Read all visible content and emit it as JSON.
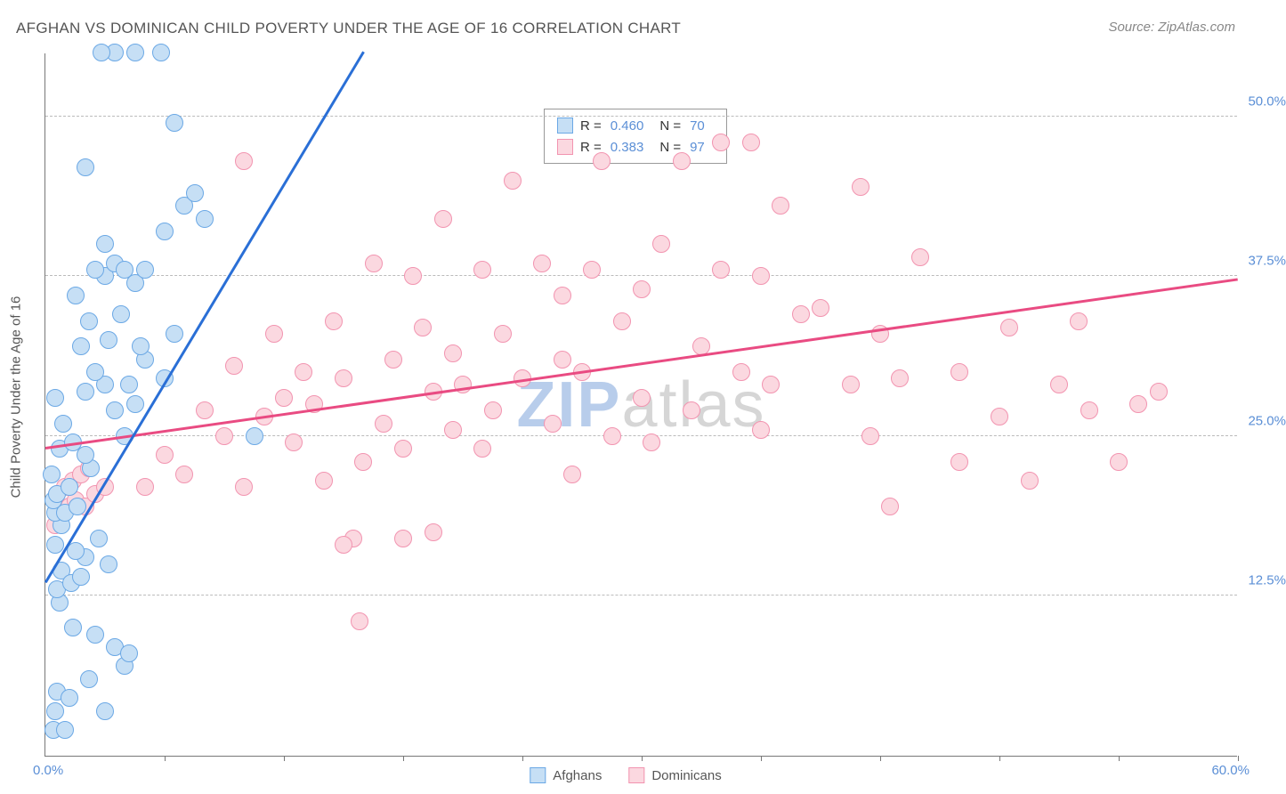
{
  "title": "AFGHAN VS DOMINICAN CHILD POVERTY UNDER THE AGE OF 16 CORRELATION CHART",
  "source": "Source: ZipAtlas.com",
  "watermark_bold": "ZIP",
  "watermark_light": "atlas",
  "y_axis_label": "Child Poverty Under the Age of 16",
  "chart": {
    "type": "scatter",
    "xlim": [
      0,
      60
    ],
    "ylim": [
      0,
      55
    ],
    "x_min_label": "0.0%",
    "x_max_label": "60.0%",
    "y_ticks": [
      {
        "v": 12.5,
        "label": "12.5%"
      },
      {
        "v": 25.0,
        "label": "25.0%"
      },
      {
        "v": 37.5,
        "label": "37.5%"
      },
      {
        "v": 50.0,
        "label": "50.0%"
      }
    ],
    "x_ticks_at": [
      6,
      12,
      18,
      24,
      30,
      36,
      42,
      48,
      54,
      60
    ],
    "marker_size": 20,
    "background_color": "#ffffff",
    "grid_color": "#bbbbbb"
  },
  "series": {
    "afghans": {
      "label": "Afghans",
      "color_fill": "#c6dff5",
      "color_stroke": "#6ba8e5",
      "line_color": "#2a6fd6",
      "R": "0.460",
      "N": "70",
      "trend": {
        "x1": 0,
        "y1": 13.5,
        "x2": 16,
        "y2": 55
      },
      "points": [
        [
          0.4,
          2.0
        ],
        [
          0.5,
          3.5
        ],
        [
          1.0,
          2.0
        ],
        [
          0.6,
          5.0
        ],
        [
          3.0,
          3.5
        ],
        [
          1.2,
          4.5
        ],
        [
          2.2,
          6.0
        ],
        [
          4.0,
          7.0
        ],
        [
          3.5,
          8.5
        ],
        [
          4.2,
          8.0
        ],
        [
          2.5,
          9.5
        ],
        [
          1.4,
          10.0
        ],
        [
          0.7,
          12.0
        ],
        [
          0.6,
          13.0
        ],
        [
          0.8,
          14.5
        ],
        [
          1.3,
          13.5
        ],
        [
          1.8,
          14.0
        ],
        [
          2.0,
          15.5
        ],
        [
          3.2,
          15.0
        ],
        [
          0.5,
          16.5
        ],
        [
          1.5,
          16.0
        ],
        [
          2.7,
          17.0
        ],
        [
          0.8,
          18.0
        ],
        [
          0.5,
          19.0
        ],
        [
          1.0,
          19.0
        ],
        [
          1.6,
          19.5
        ],
        [
          0.4,
          20.0
        ],
        [
          0.6,
          20.5
        ],
        [
          1.2,
          21.0
        ],
        [
          0.3,
          22.0
        ],
        [
          2.3,
          22.5
        ],
        [
          2.0,
          23.5
        ],
        [
          0.7,
          24.0
        ],
        [
          1.4,
          24.5
        ],
        [
          4.0,
          25.0
        ],
        [
          10.5,
          25.0
        ],
        [
          0.9,
          26.0
        ],
        [
          3.5,
          27.0
        ],
        [
          4.5,
          27.5
        ],
        [
          0.5,
          28.0
        ],
        [
          2.0,
          28.5
        ],
        [
          3.0,
          29.0
        ],
        [
          4.2,
          29.0
        ],
        [
          6.0,
          29.5
        ],
        [
          2.5,
          30.0
        ],
        [
          5.0,
          31.0
        ],
        [
          1.8,
          32.0
        ],
        [
          3.2,
          32.5
        ],
        [
          4.8,
          32.0
        ],
        [
          6.5,
          33.0
        ],
        [
          2.2,
          34.0
        ],
        [
          3.8,
          34.5
        ],
        [
          1.5,
          36.0
        ],
        [
          4.5,
          37.0
        ],
        [
          3.0,
          37.5
        ],
        [
          5.0,
          38.0
        ],
        [
          2.5,
          38.0
        ],
        [
          3.5,
          38.5
        ],
        [
          4.0,
          38.0
        ],
        [
          6.0,
          41.0
        ],
        [
          7.0,
          43.0
        ],
        [
          7.5,
          44.0
        ],
        [
          3.5,
          55.0
        ],
        [
          4.5,
          55.0
        ],
        [
          2.8,
          55.0
        ],
        [
          5.8,
          55.0
        ],
        [
          6.5,
          49.5
        ],
        [
          8.0,
          42.0
        ],
        [
          2.0,
          46.0
        ],
        [
          3.0,
          40.0
        ]
      ]
    },
    "dominicans": {
      "label": "Dominicans",
      "color_fill": "#fbd8e0",
      "color_stroke": "#f294b0",
      "line_color": "#e94b82",
      "R": "0.383",
      "N": "97",
      "trend": {
        "x1": 0,
        "y1": 24.0,
        "x2": 60,
        "y2": 37.2
      },
      "points": [
        [
          0.5,
          18.0
        ],
        [
          0.8,
          19.0
        ],
        [
          1.2,
          19.5
        ],
        [
          1.5,
          20.0
        ],
        [
          0.6,
          20.5
        ],
        [
          1.0,
          21.0
        ],
        [
          1.4,
          21.5
        ],
        [
          2.0,
          19.5
        ],
        [
          1.8,
          22.0
        ],
        [
          2.5,
          20.5
        ],
        [
          2.2,
          22.5
        ],
        [
          3.0,
          21.0
        ],
        [
          5.0,
          21.0
        ],
        [
          6.0,
          23.5
        ],
        [
          7.0,
          22.0
        ],
        [
          8.0,
          27.0
        ],
        [
          9.0,
          25.0
        ],
        [
          9.5,
          30.5
        ],
        [
          10.0,
          21.0
        ],
        [
          11.0,
          26.5
        ],
        [
          11.5,
          33.0
        ],
        [
          12.0,
          28.0
        ],
        [
          12.5,
          24.5
        ],
        [
          13.0,
          30.0
        ],
        [
          13.5,
          27.5
        ],
        [
          14.0,
          21.5
        ],
        [
          14.5,
          34.0
        ],
        [
          15.0,
          29.5
        ],
        [
          15.5,
          17.0
        ],
        [
          15.0,
          16.5
        ],
        [
          15.8,
          10.5
        ],
        [
          16.0,
          23.0
        ],
        [
          16.5,
          38.5
        ],
        [
          17.0,
          26.0
        ],
        [
          17.5,
          31.0
        ],
        [
          18.0,
          24.0
        ],
        [
          18.0,
          17.0
        ],
        [
          18.5,
          37.5
        ],
        [
          19.0,
          33.5
        ],
        [
          19.5,
          17.5
        ],
        [
          19.5,
          28.5
        ],
        [
          20.0,
          42.0
        ],
        [
          20.5,
          25.5
        ],
        [
          20.5,
          31.5
        ],
        [
          21.0,
          29.0
        ],
        [
          22.0,
          38.0
        ],
        [
          22.5,
          27.0
        ],
        [
          22.0,
          24.0
        ],
        [
          23.0,
          33.0
        ],
        [
          23.5,
          45.0
        ],
        [
          24.0,
          29.5
        ],
        [
          25.0,
          38.5
        ],
        [
          25.5,
          26.0
        ],
        [
          26.0,
          31.0
        ],
        [
          26.0,
          36.0
        ],
        [
          26.5,
          22.0
        ],
        [
          27.0,
          30.0
        ],
        [
          27.5,
          38.0
        ],
        [
          28.0,
          46.5
        ],
        [
          28.5,
          25.0
        ],
        [
          29.0,
          34.0
        ],
        [
          30.0,
          28.0
        ],
        [
          30.0,
          36.5
        ],
        [
          30.5,
          24.5
        ],
        [
          31.0,
          40.0
        ],
        [
          32.0,
          46.5
        ],
        [
          32.5,
          27.0
        ],
        [
          33.0,
          32.0
        ],
        [
          34.0,
          38.0
        ],
        [
          34.0,
          48.0
        ],
        [
          35.0,
          30.0
        ],
        [
          36.0,
          25.5
        ],
        [
          36.0,
          37.5
        ],
        [
          36.5,
          29.0
        ],
        [
          37.0,
          43.0
        ],
        [
          38.0,
          34.5
        ],
        [
          39.0,
          35.0
        ],
        [
          40.5,
          29.0
        ],
        [
          41.0,
          44.5
        ],
        [
          41.5,
          25.0
        ],
        [
          42.0,
          33.0
        ],
        [
          42.5,
          19.5
        ],
        [
          43.0,
          29.5
        ],
        [
          44.0,
          39.0
        ],
        [
          46.0,
          23.0
        ],
        [
          46.0,
          30.0
        ],
        [
          48.0,
          26.5
        ],
        [
          48.5,
          33.5
        ],
        [
          49.5,
          21.5
        ],
        [
          51.0,
          29.0
        ],
        [
          52.0,
          34.0
        ],
        [
          52.5,
          27.0
        ],
        [
          54.0,
          23.0
        ],
        [
          55.0,
          27.5
        ],
        [
          56.0,
          28.5
        ],
        [
          10.0,
          46.5
        ],
        [
          35.5,
          48.0
        ]
      ]
    }
  },
  "legend_bottom": [
    {
      "key": "afghans"
    },
    {
      "key": "dominicans"
    }
  ]
}
